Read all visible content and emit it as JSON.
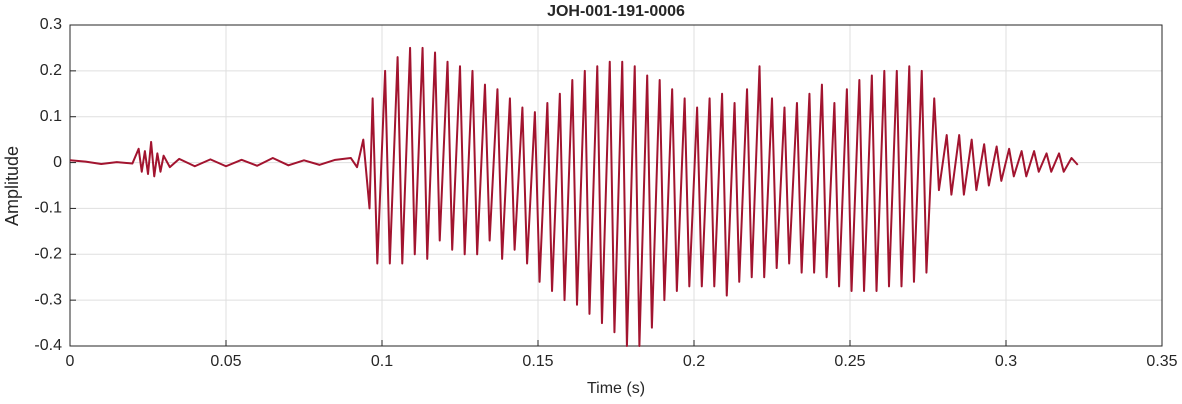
{
  "chart_data": {
    "type": "line",
    "title": "JOH-001-191-0006",
    "x_label": "Time (s)",
    "y_label": "Amplitude",
    "xlim": [
      0,
      0.35
    ],
    "xticks": [
      0,
      0.05,
      0.1,
      0.15,
      0.2,
      0.25,
      0.3,
      0.35
    ],
    "ylim": [
      -0.4,
      0.3
    ],
    "yticks": [
      -0.4,
      -0.3,
      -0.2,
      -0.1,
      0,
      0.1,
      0.2,
      0.3
    ],
    "grid": true,
    "series": [
      {
        "color": "#a2142f",
        "x": [
          0,
          0.005,
          0.01,
          0.015,
          0.02,
          0.022,
          0.023,
          0.024,
          0.025,
          0.026,
          0.027,
          0.028,
          0.029,
          0.03,
          0.032,
          0.035,
          0.04,
          0.045,
          0.05,
          0.055,
          0.06,
          0.065,
          0.07,
          0.075,
          0.08,
          0.085,
          0.09,
          0.092,
          0.094,
          0.096,
          0.097,
          0.0985,
          0.101,
          0.1025,
          0.105,
          0.1065,
          0.109,
          0.1105,
          0.113,
          0.1145,
          0.117,
          0.1185,
          0.121,
          0.1225,
          0.125,
          0.1265,
          0.129,
          0.1305,
          0.133,
          0.1345,
          0.137,
          0.1385,
          0.141,
          0.1425,
          0.145,
          0.1465,
          0.149,
          0.1505,
          0.153,
          0.1545,
          0.157,
          0.1585,
          0.161,
          0.1625,
          0.165,
          0.1665,
          0.169,
          0.1705,
          0.173,
          0.1745,
          0.177,
          0.1785,
          0.181,
          0.1825,
          0.185,
          0.1865,
          0.189,
          0.1905,
          0.193,
          0.1945,
          0.197,
          0.1985,
          0.201,
          0.2025,
          0.205,
          0.2065,
          0.209,
          0.2105,
          0.213,
          0.2145,
          0.217,
          0.2185,
          0.221,
          0.2225,
          0.225,
          0.2265,
          0.229,
          0.2305,
          0.233,
          0.2345,
          0.237,
          0.2385,
          0.241,
          0.2425,
          0.245,
          0.2465,
          0.249,
          0.2505,
          0.253,
          0.2545,
          0.257,
          0.2585,
          0.261,
          0.2625,
          0.265,
          0.2665,
          0.269,
          0.2705,
          0.273,
          0.2745,
          0.277,
          0.2785,
          0.281,
          0.2825,
          0.285,
          0.2865,
          0.289,
          0.2905,
          0.293,
          0.2945,
          0.297,
          0.2985,
          0.301,
          0.3025,
          0.305,
          0.3065,
          0.309,
          0.3105,
          0.313,
          0.3145,
          0.317,
          0.3185,
          0.321,
          0.323
        ],
        "values": [
          0.005,
          0.002,
          -0.003,
          0.001,
          -0.002,
          0.03,
          -0.02,
          0.025,
          -0.025,
          0.045,
          -0.03,
          0.02,
          -0.02,
          0.015,
          -0.01,
          0.008,
          -0.008,
          0.007,
          -0.008,
          0.006,
          -0.007,
          0.01,
          -0.006,
          0.005,
          -0.005,
          0.006,
          0.01,
          -0.01,
          0.05,
          -0.1,
          0.14,
          -0.22,
          0.2,
          -0.22,
          0.23,
          -0.22,
          0.25,
          -0.2,
          0.25,
          -0.21,
          0.24,
          -0.17,
          0.22,
          -0.19,
          0.21,
          -0.2,
          0.2,
          -0.2,
          0.17,
          -0.17,
          0.16,
          -0.21,
          0.14,
          -0.19,
          0.12,
          -0.22,
          0.11,
          -0.26,
          0.13,
          -0.28,
          0.15,
          -0.3,
          0.18,
          -0.31,
          0.2,
          -0.33,
          0.21,
          -0.35,
          0.22,
          -0.37,
          0.22,
          -0.4,
          0.21,
          -0.4,
          0.19,
          -0.36,
          0.18,
          -0.3,
          0.16,
          -0.28,
          0.14,
          -0.27,
          0.12,
          -0.27,
          0.14,
          -0.27,
          0.15,
          -0.29,
          0.13,
          -0.26,
          0.16,
          -0.25,
          0.21,
          -0.25,
          0.14,
          -0.23,
          0.12,
          -0.22,
          0.13,
          -0.24,
          0.15,
          -0.24,
          0.17,
          -0.25,
          0.13,
          -0.27,
          0.16,
          -0.28,
          0.18,
          -0.28,
          0.19,
          -0.28,
          0.2,
          -0.27,
          0.2,
          -0.27,
          0.21,
          -0.26,
          0.2,
          -0.24,
          0.14,
          -0.06,
          0.06,
          -0.07,
          0.06,
          -0.07,
          0.05,
          -0.06,
          0.04,
          -0.05,
          0.035,
          -0.04,
          0.03,
          -0.03,
          0.025,
          -0.03,
          0.025,
          -0.02,
          0.02,
          -0.02,
          0.02,
          -0.02,
          0.01,
          -0.005
        ]
      }
    ]
  }
}
